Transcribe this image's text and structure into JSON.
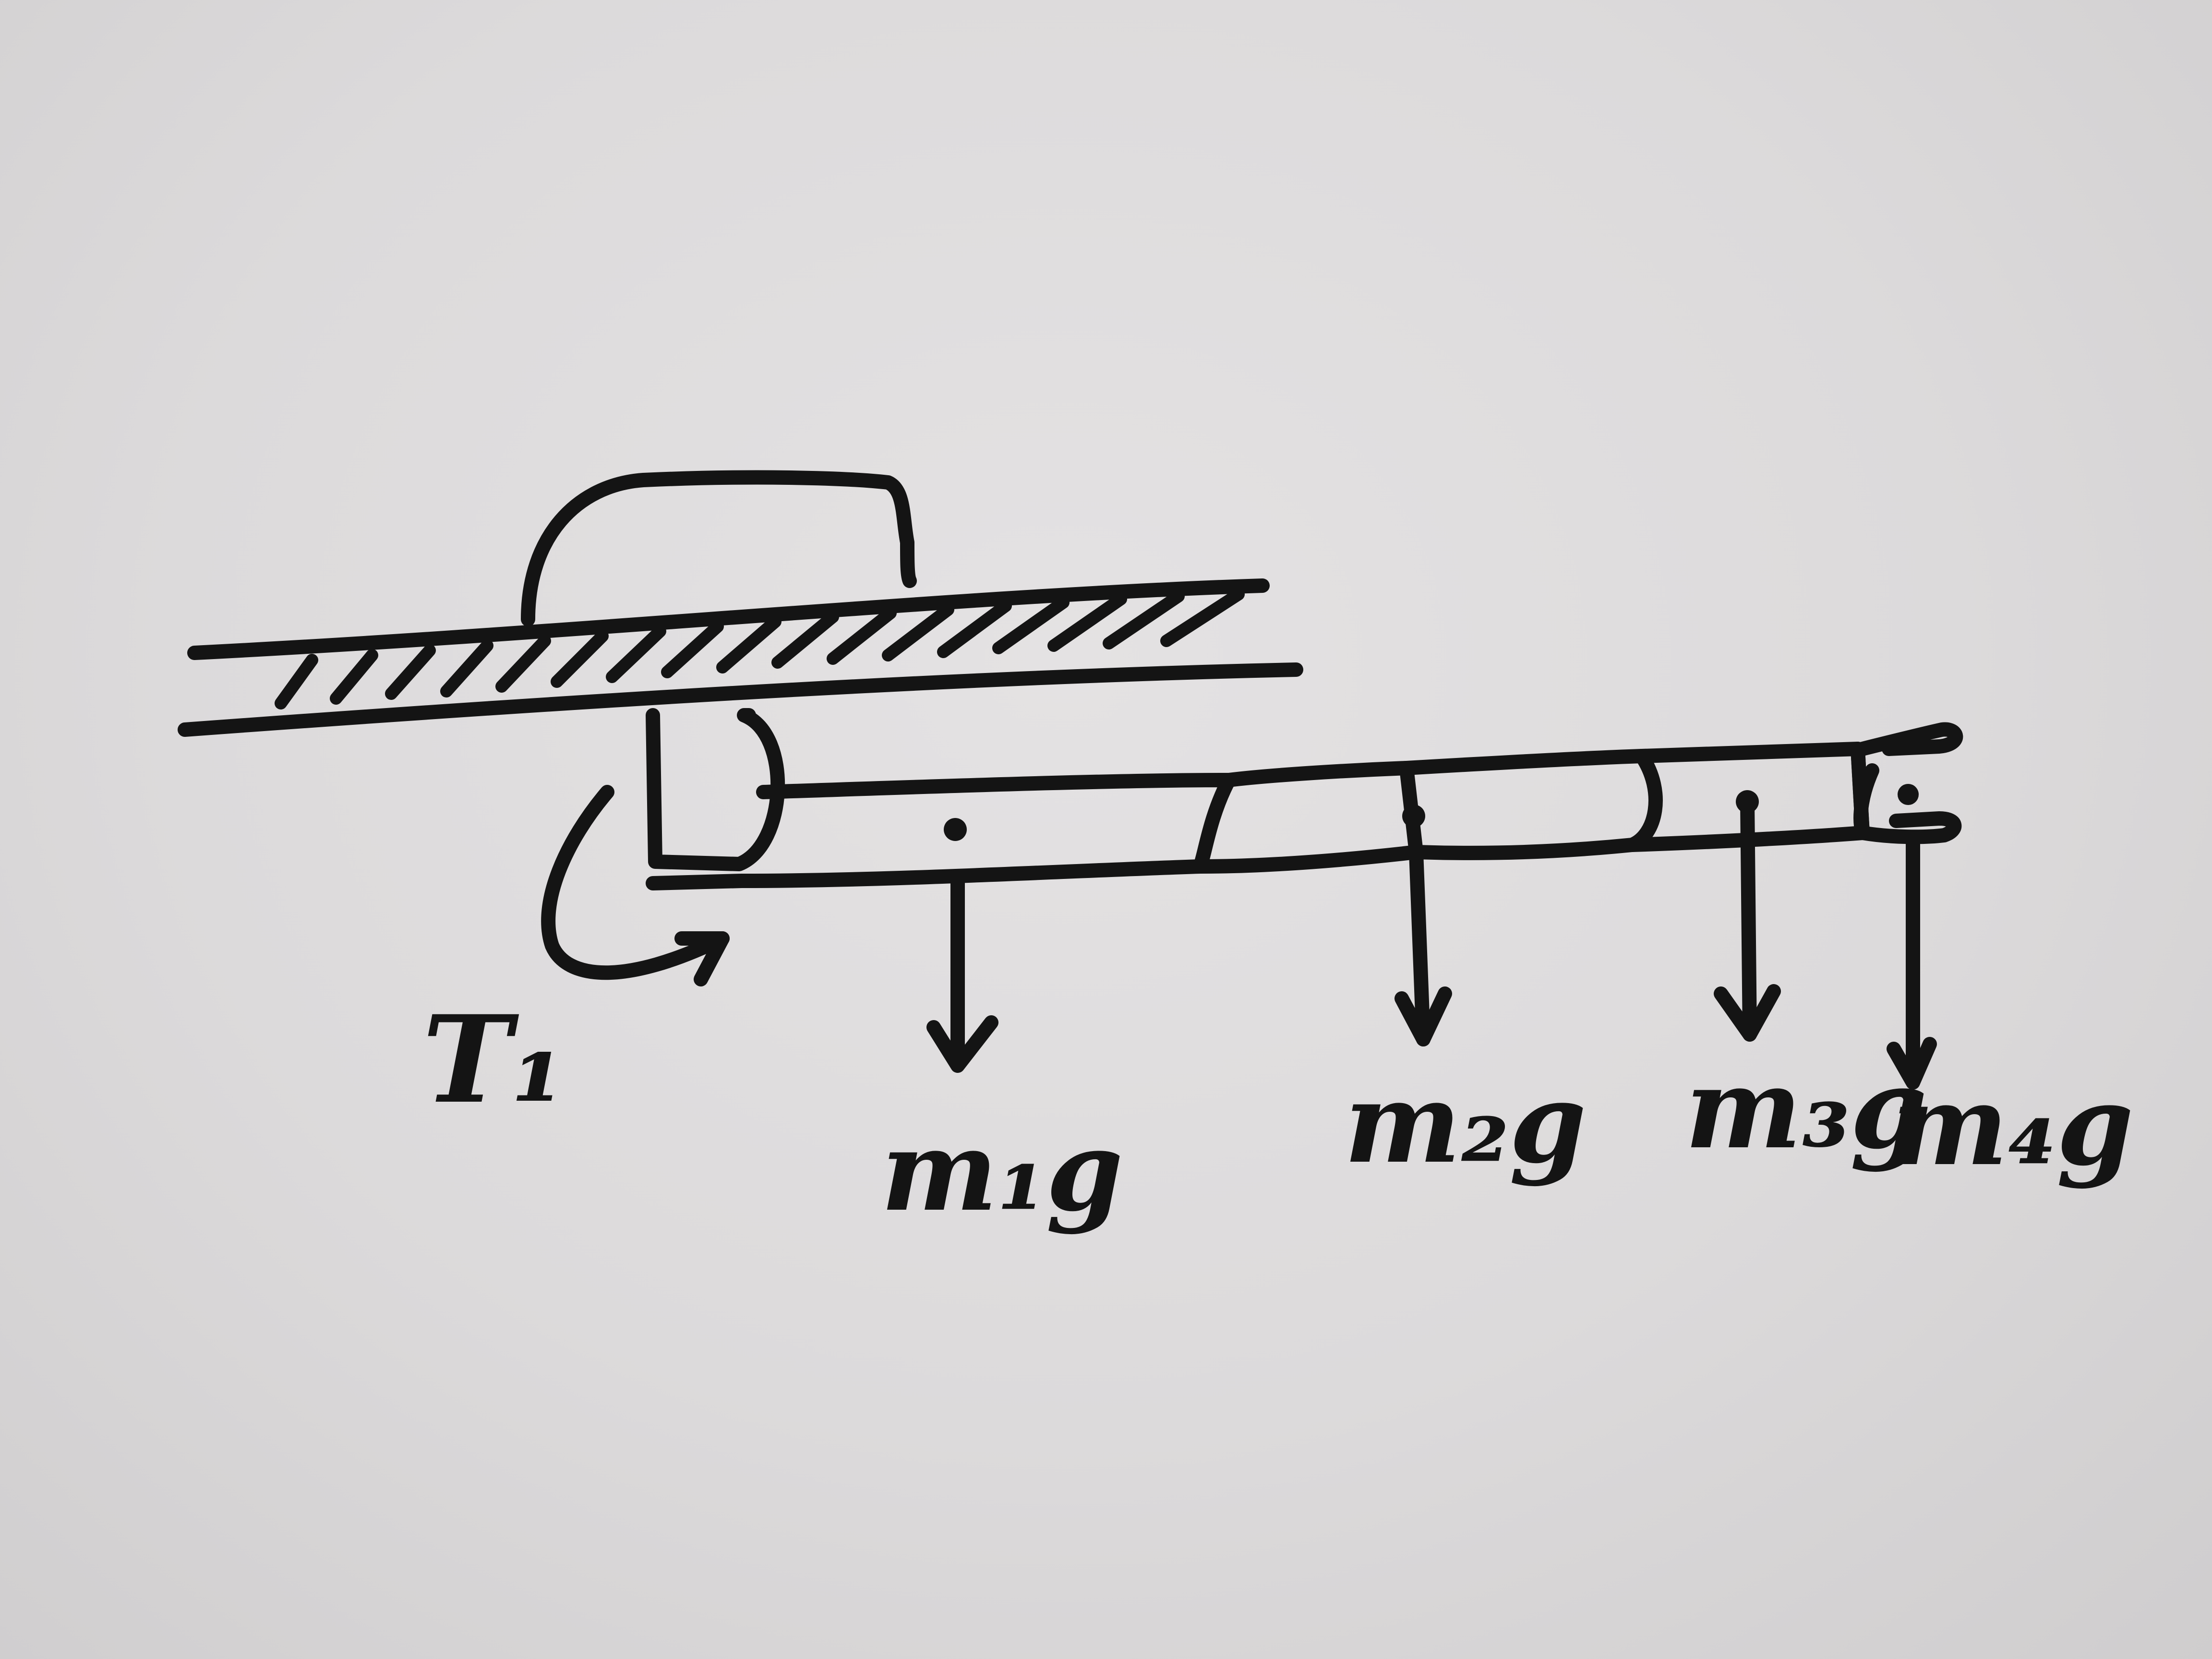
{
  "diagram": {
    "torque_label": "T₁",
    "load_labels": [
      "m₁g",
      "m₂g",
      "m₃g",
      "m₄g"
    ],
    "ink_color": "#141414",
    "paper_color": "#dcdadb"
  }
}
